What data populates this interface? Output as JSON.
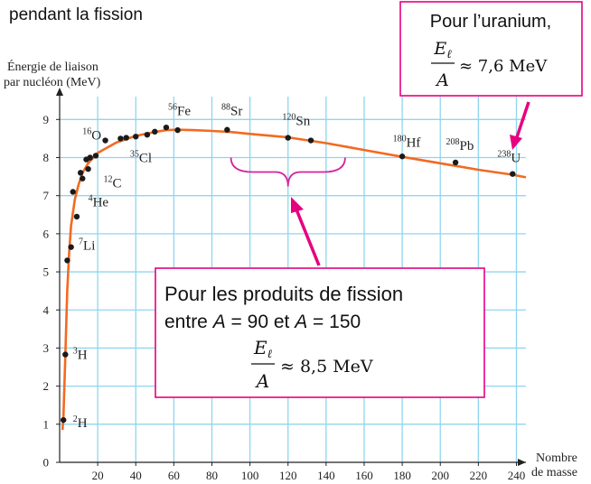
{
  "header": {
    "title_fragment": "pendant la fission"
  },
  "chart_data": {
    "type": "scatter",
    "ylabel_line1": "Énergie de liaison",
    "ylabel_line2": "par nucléon (MeV)",
    "xlabel_line1": "Nombre",
    "xlabel_line2": "de masse",
    "xlim": [
      0,
      245
    ],
    "ylim": [
      0,
      9.6
    ],
    "x_ticks": [
      20,
      40,
      60,
      80,
      100,
      120,
      140,
      160,
      180,
      200,
      220,
      240
    ],
    "y_ticks": [
      0,
      1,
      2,
      3,
      4,
      5,
      6,
      7,
      8,
      9
    ],
    "grid": true,
    "points": [
      {
        "x": 2,
        "y": 1.11
      },
      {
        "x": 3,
        "y": 2.83
      },
      {
        "x": 4,
        "y": 5.3
      },
      {
        "x": 6,
        "y": 5.65
      },
      {
        "x": 7,
        "y": 7.1
      },
      {
        "x": 9,
        "y": 6.45
      },
      {
        "x": 11,
        "y": 7.6
      },
      {
        "x": 12,
        "y": 7.45
      },
      {
        "x": 14,
        "y": 7.95
      },
      {
        "x": 15,
        "y": 7.7
      },
      {
        "x": 16,
        "y": 8.0
      },
      {
        "x": 19,
        "y": 8.05
      },
      {
        "x": 24,
        "y": 8.45
      },
      {
        "x": 32,
        "y": 8.5
      },
      {
        "x": 35,
        "y": 8.52
      },
      {
        "x": 40,
        "y": 8.55
      },
      {
        "x": 46,
        "y": 8.6
      },
      {
        "x": 50,
        "y": 8.68
      },
      {
        "x": 56,
        "y": 8.79
      },
      {
        "x": 62,
        "y": 8.72
      },
      {
        "x": 88,
        "y": 8.73
      },
      {
        "x": 120,
        "y": 8.52
      },
      {
        "x": 132,
        "y": 8.45
      },
      {
        "x": 180,
        "y": 8.03
      },
      {
        "x": 208,
        "y": 7.87
      },
      {
        "x": 238,
        "y": 7.57
      }
    ],
    "curve": [
      [
        1.5,
        0.85
      ],
      [
        2,
        1.2
      ],
      [
        3,
        2.8
      ],
      [
        4,
        4.5
      ],
      [
        5,
        5.5
      ],
      [
        6,
        6.2
      ],
      [
        8,
        6.9
      ],
      [
        10,
        7.3
      ],
      [
        12,
        7.6
      ],
      [
        15,
        7.85
      ],
      [
        20,
        8.12
      ],
      [
        30,
        8.4
      ],
      [
        40,
        8.57
      ],
      [
        50,
        8.67
      ],
      [
        56,
        8.72
      ],
      [
        62,
        8.73
      ],
      [
        70,
        8.72
      ],
      [
        80,
        8.7
      ],
      [
        90,
        8.67
      ],
      [
        100,
        8.62
      ],
      [
        120,
        8.53
      ],
      [
        140,
        8.38
      ],
      [
        160,
        8.2
      ],
      [
        180,
        8.02
      ],
      [
        200,
        7.85
      ],
      [
        220,
        7.68
      ],
      [
        238,
        7.55
      ],
      [
        245,
        7.48
      ]
    ],
    "nuclide_labels": [
      {
        "mass": "56",
        "sym": "Fe",
        "x": 57,
        "y": 9.12
      },
      {
        "mass": "88",
        "sym": "Sr",
        "x": 85,
        "y": 9.12
      },
      {
        "mass": "120",
        "sym": "Sn",
        "x": 117,
        "y": 8.85
      },
      {
        "mass": "16",
        "sym": "O",
        "x": 12,
        "y": 8.48
      },
      {
        "mass": "35",
        "sym": "Cl",
        "x": 37,
        "y": 7.88
      },
      {
        "mass": "180",
        "sym": "Hf",
        "x": 175,
        "y": 8.28
      },
      {
        "mass": "208",
        "sym": "Pb",
        "x": 203,
        "y": 8.2
      },
      {
        "mass": "238",
        "sym": "U",
        "x": 230,
        "y": 7.88
      },
      {
        "mass": "12",
        "sym": "C",
        "x": 23,
        "y": 7.22
      },
      {
        "mass": "4",
        "sym": "He",
        "x": 15,
        "y": 6.72
      },
      {
        "mass": "7",
        "sym": "Li",
        "x": 10,
        "y": 5.58
      },
      {
        "mass": "3",
        "sym": "H",
        "x": 7,
        "y": 2.72
      },
      {
        "mass": "2",
        "sym": "H",
        "x": 7,
        "y": 0.92
      }
    ],
    "annotations": {
      "uranium_box": {
        "line1": "Pour l’uranium,",
        "frac_num": "E",
        "frac_num_sub": "ℓ",
        "frac_den": "A",
        "approx": "≈ 7,6 MeV"
      },
      "fission_box": {
        "line1": "Pour les produits de fission",
        "line2_pre": "entre ",
        "var": "A",
        "eq1": " = 90",
        "mid": " et ",
        "eq2": " = 150",
        "frac_num": "E",
        "frac_num_sub": "ℓ",
        "frac_den": "A",
        "approx": "≈ 8,5 MeV"
      },
      "brace_range": [
        90,
        150
      ],
      "brace_y": 8.0
    },
    "colors": {
      "curve": "#f26a21",
      "grid": "#8fd6ee",
      "axis": "#222222",
      "point": "#1a1a1a",
      "annotation": "#e6007e",
      "brace": "#d6249f"
    }
  }
}
